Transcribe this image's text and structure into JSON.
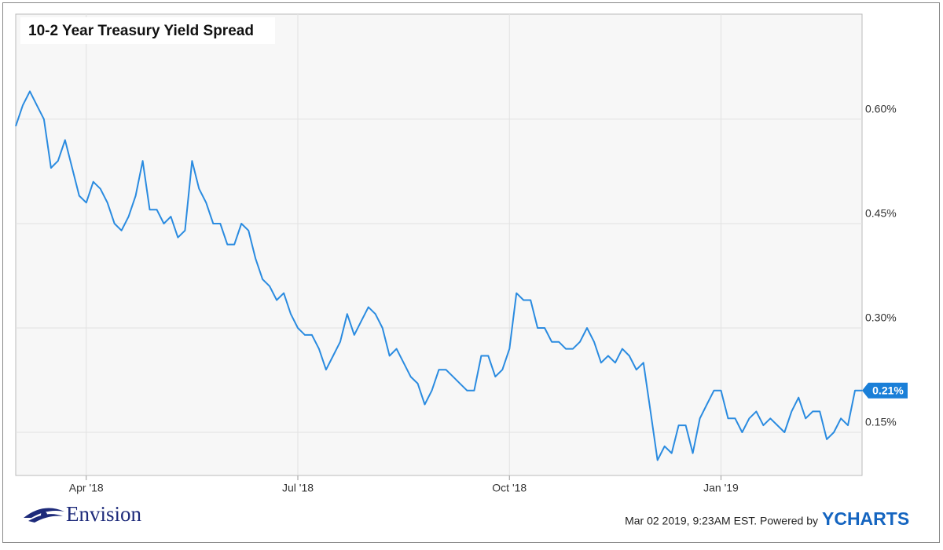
{
  "chart_data": {
    "type": "line",
    "title": "10-2 Year Treasury Yield Spread",
    "categories": [
      null,
      null,
      null,
      null,
      null,
      null,
      null,
      null,
      null,
      null,
      "Apr '18",
      null,
      null,
      null,
      null,
      null,
      null,
      null,
      null,
      null,
      null,
      null,
      null,
      null,
      null,
      null,
      null,
      null,
      null,
      null,
      null,
      null,
      null,
      null,
      null,
      null,
      null,
      null,
      null,
      null,
      "Jul '18",
      null,
      null,
      null,
      null,
      null,
      null,
      null,
      null,
      null,
      null,
      null,
      null,
      null,
      null,
      null,
      null,
      null,
      null,
      null,
      null,
      null,
      null,
      null,
      null,
      null,
      null,
      null,
      null,
      null,
      "Oct '18",
      null,
      null,
      null,
      null,
      null,
      null,
      null,
      null,
      null,
      null,
      null,
      null,
      null,
      null,
      null,
      null,
      null,
      null,
      null,
      null,
      null,
      null,
      null,
      null,
      null,
      null,
      null,
      null,
      null,
      "Jan '19",
      null,
      null,
      null,
      null,
      null,
      null,
      null,
      null,
      null,
      null,
      null,
      null,
      null,
      null,
      null,
      null,
      null,
      null,
      null,
      null
    ],
    "series": [
      {
        "name": "10-2 Year Treasury Yield Spread",
        "color": "#2a8be0",
        "values": [
          0.59,
          0.62,
          0.64,
          0.62,
          0.6,
          0.53,
          0.54,
          0.57,
          0.53,
          0.49,
          0.48,
          0.51,
          0.5,
          0.48,
          0.45,
          0.44,
          0.46,
          0.49,
          0.54,
          0.47,
          0.47,
          0.45,
          0.46,
          0.43,
          0.44,
          0.54,
          0.5,
          0.48,
          0.45,
          0.45,
          0.42,
          0.42,
          0.45,
          0.44,
          0.4,
          0.37,
          0.36,
          0.34,
          0.35,
          0.32,
          0.3,
          0.29,
          0.29,
          0.27,
          0.24,
          0.26,
          0.28,
          0.32,
          0.29,
          0.31,
          0.33,
          0.32,
          0.3,
          0.26,
          0.27,
          0.25,
          0.23,
          0.22,
          0.19,
          0.21,
          0.24,
          0.24,
          0.23,
          0.22,
          0.21,
          0.21,
          0.26,
          0.26,
          0.23,
          0.24,
          0.27,
          0.35,
          0.34,
          0.34,
          0.3,
          0.3,
          0.28,
          0.28,
          0.27,
          0.27,
          0.28,
          0.3,
          0.28,
          0.25,
          0.26,
          0.25,
          0.27,
          0.26,
          0.24,
          0.25,
          0.18,
          0.11,
          0.13,
          0.12,
          0.16,
          0.16,
          0.12,
          0.17,
          0.19,
          0.21,
          0.21,
          0.17,
          0.17,
          0.15,
          0.17,
          0.18,
          0.16,
          0.17,
          0.16,
          0.15,
          0.18,
          0.2,
          0.17,
          0.18,
          0.18,
          0.14,
          0.15,
          0.17,
          0.16,
          0.21,
          0.21
        ],
        "value_labels": [
          null,
          null,
          null,
          null,
          null,
          null,
          null,
          null,
          null,
          null,
          null,
          null,
          null,
          null,
          null,
          null,
          null,
          null,
          null,
          null,
          null,
          null,
          null,
          null,
          null,
          null,
          null,
          null,
          null,
          null,
          null,
          null,
          null,
          null,
          null,
          null,
          null,
          null,
          null,
          null,
          null,
          null,
          null,
          null,
          null,
          null,
          null,
          null,
          null,
          null,
          null,
          null,
          null,
          null,
          null,
          null,
          null,
          null,
          null,
          null,
          null,
          null,
          null,
          null,
          null,
          null,
          null,
          null,
          null,
          null,
          null,
          null,
          null,
          null,
          null,
          null,
          null,
          null,
          null,
          null,
          null,
          null,
          null,
          null,
          null,
          null,
          null,
          null,
          null,
          null,
          null,
          null,
          null,
          null,
          null,
          null,
          null,
          null,
          null,
          null,
          null,
          null,
          null,
          null,
          null,
          null,
          null,
          null,
          null,
          null,
          null,
          null,
          null,
          null,
          null,
          null,
          null,
          null,
          null,
          null,
          "0.21%"
        ]
      }
    ],
    "ylim": [
      0.088,
      0.751
    ],
    "yticks": [
      {
        "value": 0.15,
        "label": "0.15%"
      },
      {
        "value": 0.3,
        "label": "0.30%"
      },
      {
        "value": 0.45,
        "label": "0.45%"
      },
      {
        "value": 0.6,
        "label": "0.60%"
      }
    ],
    "grid": true,
    "source_note": "Mar 02 2019, 9:23AM EST. Powered by",
    "brand": "YCHARTS",
    "logo": "Envision"
  }
}
